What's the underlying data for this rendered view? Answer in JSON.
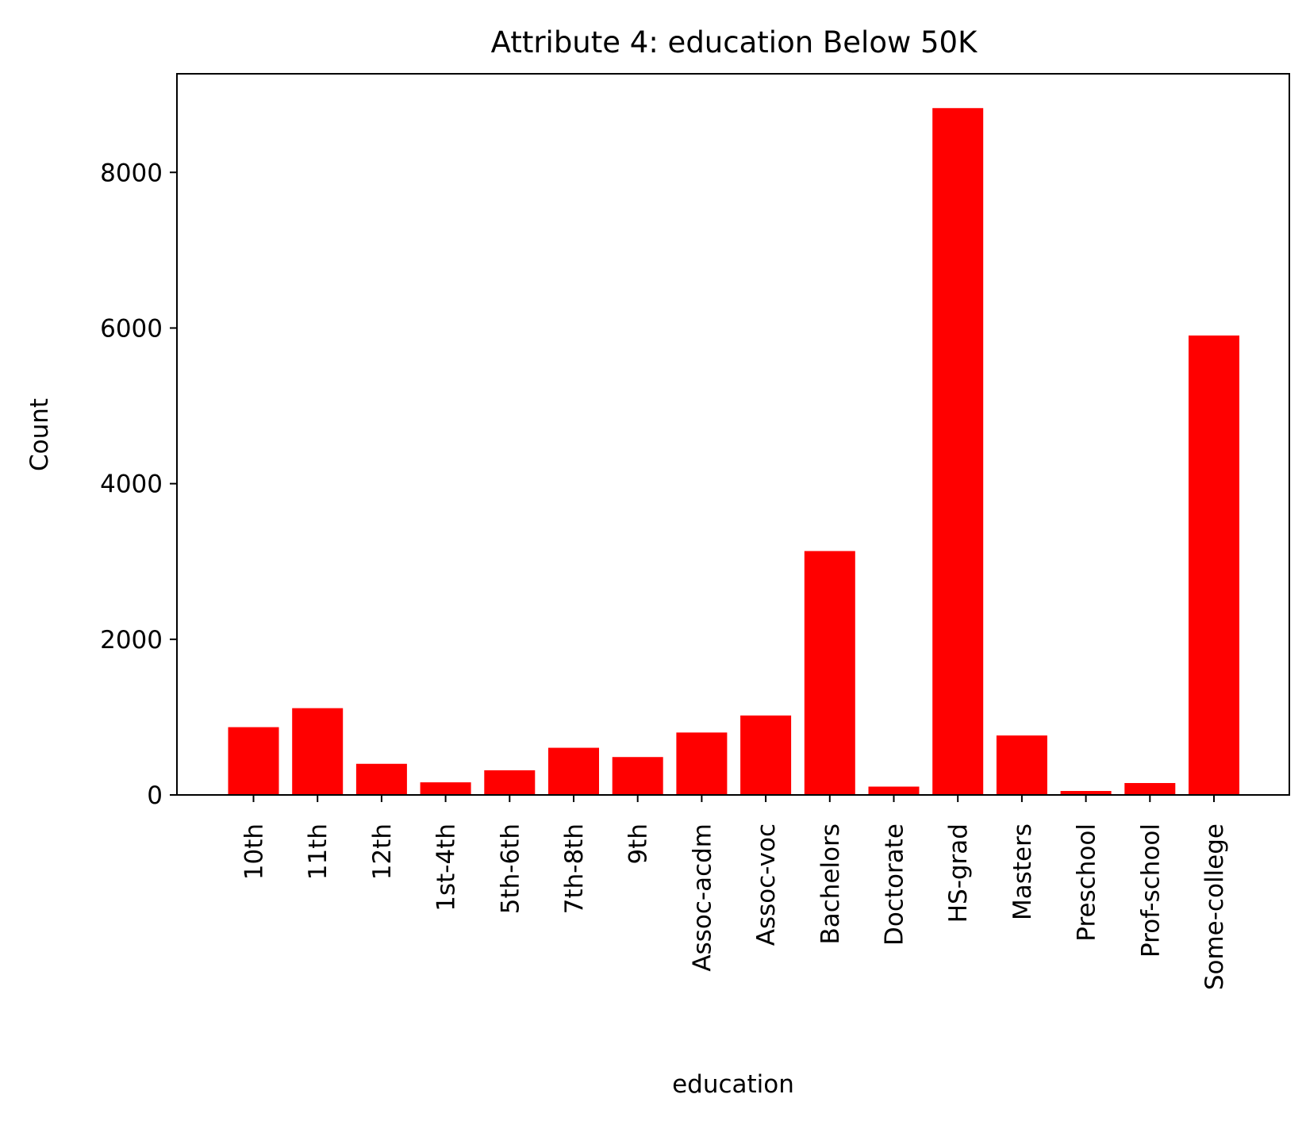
{
  "chart_data": {
    "type": "bar",
    "title": "Attribute 4: education Below 50K",
    "xlabel": "education",
    "ylabel": "Count",
    "categories": [
      "10th",
      "11th",
      "12th",
      "1st-4th",
      "5th-6th",
      "7th-8th",
      "9th",
      "Assoc-acdm",
      "Assoc-voc",
      "Bachelors",
      "Doctorate",
      "HS-grad",
      "Masters",
      "Preschool",
      "Prof-school",
      "Some-college"
    ],
    "values": [
      871,
      1115,
      400,
      162,
      317,
      606,
      487,
      802,
      1021,
      3134,
      107,
      8826,
      764,
      51,
      153,
      5904
    ],
    "ylim": [
      0,
      9267
    ],
    "yticks": [
      0,
      2000,
      4000,
      6000,
      8000
    ],
    "bar_color": "#ff0000",
    "grid": false
  }
}
